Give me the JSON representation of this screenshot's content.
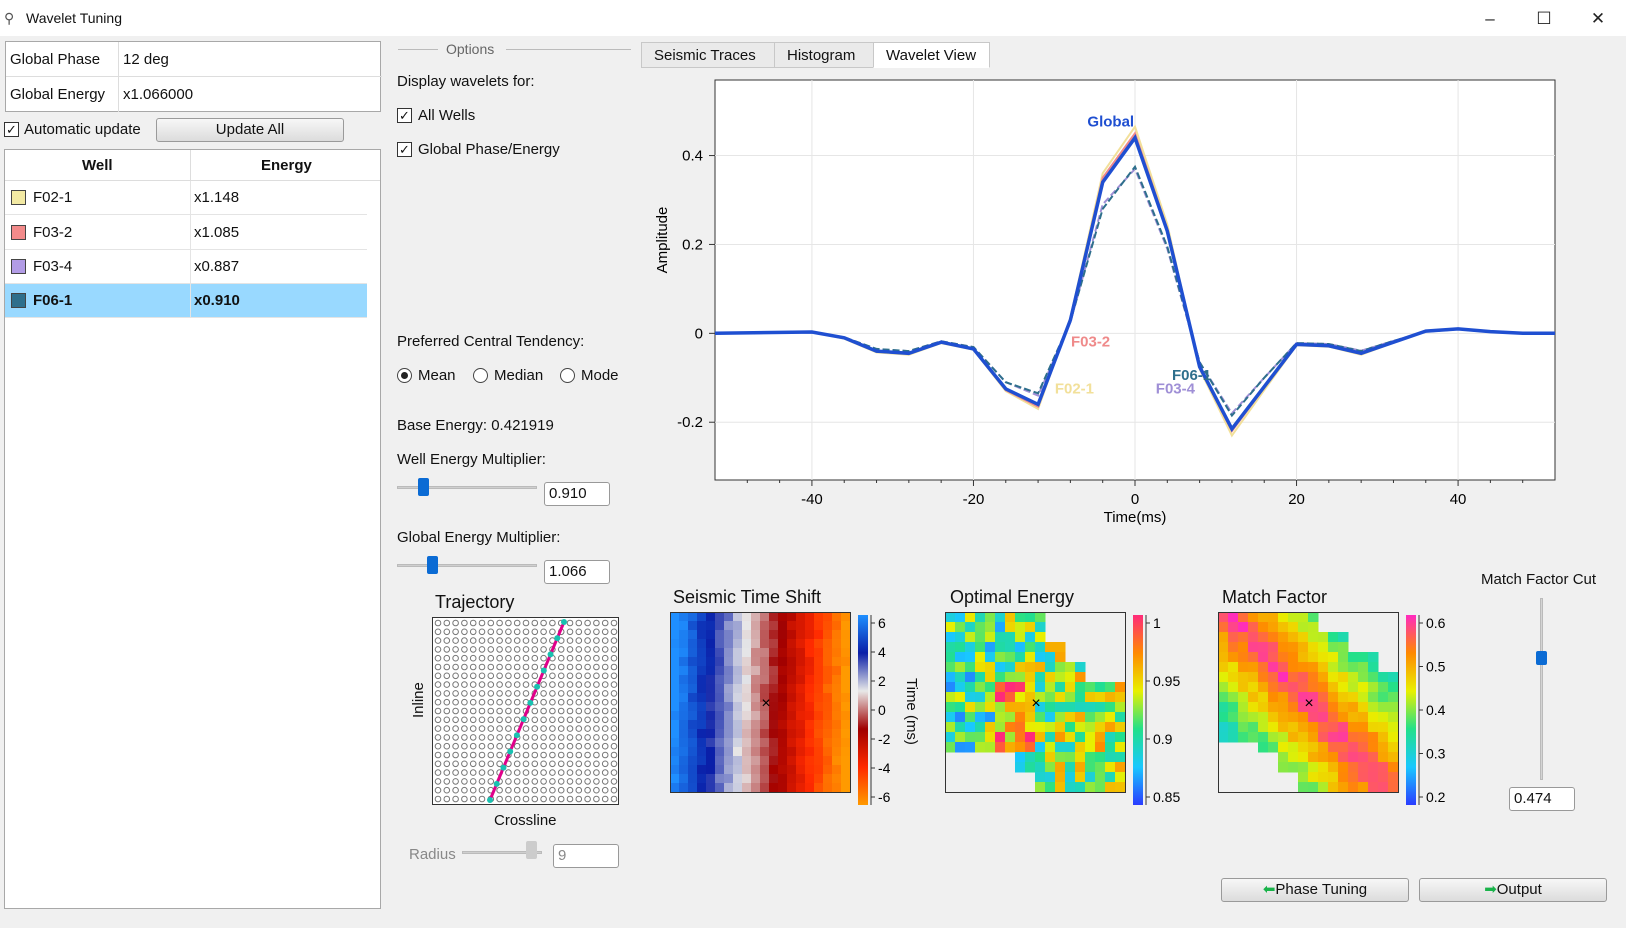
{
  "window": {
    "title": "Wavelet Tuning"
  },
  "global": {
    "phase_label": "Global Phase",
    "phase_value": "12 deg",
    "energy_label": "Global Energy",
    "energy_value": "x1.066000"
  },
  "auto_update_label": "Automatic update",
  "update_all_label": "Update All",
  "table": {
    "headers": [
      "Well",
      "Energy"
    ],
    "rows": [
      {
        "well": "F02-1",
        "energy": "x1.148",
        "color": "#f2e9a3"
      },
      {
        "well": "F03-2",
        "energy": "x1.085",
        "color": "#f28a8a"
      },
      {
        "well": "F03-4",
        "energy": "x0.887",
        "color": "#b29ce6"
      },
      {
        "well": "F06-1",
        "energy": "x0.910",
        "color": "#2e6f8c"
      }
    ]
  },
  "options": {
    "group_label": "Options",
    "display_label": "Display wavelets for:",
    "all_wells": "All Wells",
    "global_pe": "Global Phase/Energy",
    "tendency_label": "Preferred Central Tendency:",
    "mean": "Mean",
    "median": "Median",
    "mode": "Mode",
    "base_energy": "Base Energy: 0.421919",
    "well_mult_label": "Well Energy Multiplier:",
    "well_mult_value": "0.910",
    "global_mult_label": "Global Energy Multiplier:",
    "global_mult_value": "1.066"
  },
  "tabs": [
    "Seismic Traces",
    "Histogram",
    "Wavelet View"
  ],
  "chart_data": {
    "type": "line",
    "xlabel": "Time(ms)",
    "ylabel": "Amplitude",
    "xlim": [
      -52,
      52
    ],
    "ylim": [
      -0.33,
      0.57
    ],
    "xticks": [
      -40,
      -20,
      0,
      20,
      40
    ],
    "yticks": [
      -0.2,
      0,
      0.2,
      0.4
    ],
    "x": [
      -52,
      -40,
      -36,
      -32,
      -28,
      -24,
      -20,
      -16,
      -12,
      -8,
      -4,
      0,
      4,
      8,
      12,
      16,
      20,
      24,
      28,
      32,
      36,
      40,
      44,
      48,
      52
    ],
    "series": [
      {
        "name": "Global",
        "color": "#1f4fd1",
        "values": [
          0,
          0.003,
          -0.01,
          -0.04,
          -0.045,
          -0.02,
          -0.035,
          -0.125,
          -0.16,
          0.03,
          0.34,
          0.44,
          0.23,
          -0.075,
          -0.215,
          -0.12,
          -0.025,
          -0.028,
          -0.045,
          -0.02,
          0.005,
          0.01,
          0.004,
          0,
          0
        ]
      },
      {
        "name": "F02-1",
        "color": "#f2e09a",
        "values": [
          0,
          0.003,
          -0.012,
          -0.043,
          -0.048,
          -0.022,
          -0.037,
          -0.13,
          -0.17,
          0.035,
          0.36,
          0.465,
          0.245,
          -0.08,
          -0.23,
          -0.128,
          -0.027,
          -0.03,
          -0.048,
          -0.021,
          0.005,
          0.011,
          0.004,
          0,
          0
        ]
      },
      {
        "name": "F03-2",
        "color": "#ef8a8a",
        "values": [
          0,
          0.003,
          -0.011,
          -0.041,
          -0.046,
          -0.021,
          -0.036,
          -0.128,
          -0.165,
          0.032,
          0.35,
          0.45,
          0.235,
          -0.077,
          -0.22,
          -0.122,
          -0.026,
          -0.029,
          -0.046,
          -0.02,
          0.005,
          0.01,
          0.004,
          0,
          0
        ]
      },
      {
        "name": "F03-4",
        "color": "#9f8fd6",
        "values": [
          0,
          0.002,
          -0.009,
          -0.036,
          -0.04,
          -0.018,
          -0.031,
          -0.11,
          -0.14,
          0.025,
          0.29,
          0.37,
          0.19,
          -0.065,
          -0.18,
          -0.1,
          -0.022,
          -0.024,
          -0.039,
          -0.017,
          0.004,
          0.009,
          0.003,
          0,
          0
        ]
      },
      {
        "name": "F06-1",
        "color": "#2e6f8c",
        "values": [
          0,
          0.002,
          -0.009,
          -0.035,
          -0.04,
          -0.018,
          -0.031,
          -0.11,
          -0.135,
          0.027,
          0.28,
          0.375,
          0.195,
          -0.065,
          -0.185,
          -0.1,
          -0.022,
          -0.024,
          -0.04,
          -0.017,
          0.004,
          0.009,
          0.003,
          0,
          0
        ]
      }
    ]
  },
  "trajectory": {
    "title": "Trajectory",
    "xlabel": "Crossline",
    "ylabel": "Inline",
    "radius_label": "Radius",
    "radius_value": "9"
  },
  "shift": {
    "title": "Seismic Time Shift",
    "ticks": [
      "6",
      "4",
      "2",
      "0",
      "-2",
      "-4",
      "-6"
    ],
    "unit": "Time (ms)"
  },
  "energy_map": {
    "title": "Optimal Energy",
    "ticks": [
      "1",
      "0.95",
      "0.9",
      "0.85"
    ]
  },
  "match": {
    "title": "Match Factor",
    "ticks": [
      "0.6",
      "0.5",
      "0.4",
      "0.3",
      "0.2"
    ]
  },
  "cut": {
    "title": "Match Factor Cut",
    "value": "0.474",
    "level": 0.474
  },
  "buttons": {
    "phase_tuning": "Phase Tuning",
    "output": "Output"
  }
}
